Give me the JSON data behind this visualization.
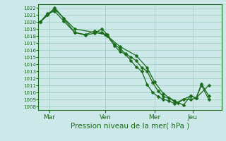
{
  "title": "",
  "xlabel": "Pression niveau de la mer( hPa )",
  "background_color": "#cce8e8",
  "plot_bg_color": "#cce8e8",
  "grid_color": "#99ccbb",
  "line_color": "#1a6b1a",
  "ylim": [
    1007.5,
    1022.5
  ],
  "yticks": [
    1008,
    1009,
    1010,
    1011,
    1012,
    1013,
    1014,
    1015,
    1016,
    1017,
    1018,
    1019,
    1020,
    1021,
    1022
  ],
  "xtick_labels": [
    "Mar",
    "Ven",
    "Mer",
    "Jeu"
  ],
  "xtick_positions": [
    0.05,
    0.36,
    0.63,
    0.84
  ],
  "line1_x": [
    0.0,
    0.04,
    0.08,
    0.13,
    0.19,
    0.25,
    0.3,
    0.34,
    0.37,
    0.41,
    0.44,
    0.47,
    0.5,
    0.53,
    0.56,
    0.59,
    0.62,
    0.65,
    0.68,
    0.71,
    0.74,
    0.76,
    0.79,
    0.83,
    0.86,
    0.89,
    0.93
  ],
  "line1_y": [
    1020.0,
    1021.2,
    1021.5,
    1020.1,
    1018.5,
    1018.1,
    1018.4,
    1019.0,
    1018.2,
    1016.8,
    1016.2,
    1015.5,
    1015.0,
    1014.5,
    1013.5,
    1013.0,
    1011.4,
    1010.2,
    1009.4,
    1009.2,
    1008.7,
    1008.5,
    1009.0,
    1009.0,
    1009.2,
    1011.0,
    1009.0
  ],
  "line2_x": [
    0.0,
    0.04,
    0.08,
    0.13,
    0.19,
    0.25,
    0.3,
    0.34,
    0.37,
    0.41,
    0.44,
    0.47,
    0.5,
    0.53,
    0.56,
    0.59,
    0.62,
    0.65,
    0.68,
    0.71,
    0.74,
    0.83,
    0.86,
    0.89,
    0.93
  ],
  "line2_y": [
    1020.0,
    1021.0,
    1022.0,
    1020.5,
    1018.5,
    1018.2,
    1018.7,
    1018.5,
    1018.0,
    1016.6,
    1015.8,
    1015.4,
    1014.5,
    1013.6,
    1013.0,
    1011.1,
    1010.0,
    1009.4,
    1009.0,
    1008.8,
    1008.4,
    1009.5,
    1009.2,
    1011.2,
    1009.5
  ],
  "line3_x": [
    0.0,
    0.08,
    0.19,
    0.3,
    0.36,
    0.44,
    0.53,
    0.59,
    0.63,
    0.68,
    0.74,
    0.79,
    0.83,
    0.86,
    0.93
  ],
  "line3_y": [
    1020.0,
    1021.8,
    1019.0,
    1018.5,
    1018.2,
    1016.5,
    1015.2,
    1013.5,
    1011.5,
    1009.8,
    1008.8,
    1008.2,
    1009.5,
    1009.2,
    1011.0
  ]
}
